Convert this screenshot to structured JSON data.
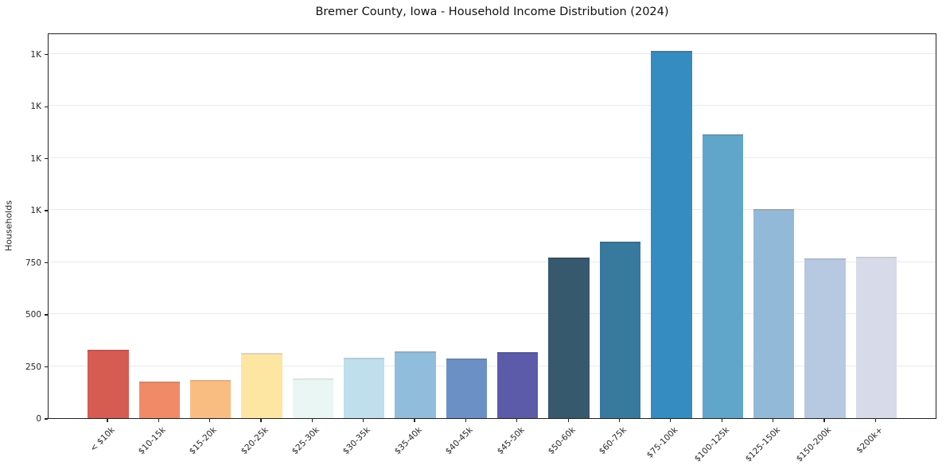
{
  "title": "Bremer County, Iowa - Household Income Distribution (2024)",
  "chart_data": {
    "type": "bar",
    "title": "Bremer County, Iowa - Household Income Distribution (2024)",
    "xlabel": "",
    "ylabel": "Households",
    "ylim": [
      0,
      1852
    ],
    "grid": "horizontal",
    "legend": "none",
    "categories": [
      "< $10k",
      "$10-15k",
      "$15-20k",
      "$20-25k",
      "$25-30k",
      "$30-35k",
      "$35-40k",
      "$40-45k",
      "$45-50k",
      "$50-60k",
      "$60-75k",
      "$75-100k",
      "$100-125k",
      "$125-150k",
      "$150-200k",
      "$200k+"
    ],
    "values": [
      327,
      175,
      184,
      315,
      190,
      291,
      322,
      287,
      318,
      772,
      848,
      1764,
      1363,
      1003,
      769,
      776
    ],
    "bar_colors": [
      "#d65b50",
      "#f18a67",
      "#fabd81",
      "#fde5a2",
      "#e9f6f3",
      "#bedfeb",
      "#91bddc",
      "#6b90c5",
      "#5c5baa",
      "#36596d",
      "#38799e",
      "#348cc0",
      "#60a5ca",
      "#93b9d9",
      "#b7c9e1",
      "#d7dae8"
    ],
    "yticks": [
      {
        "value": 0,
        "label": "0"
      },
      {
        "value": 250,
        "label": "250"
      },
      {
        "value": 500,
        "label": "500"
      },
      {
        "value": 750,
        "label": "750"
      },
      {
        "value": 1000,
        "label": "1K"
      },
      {
        "value": 1250,
        "label": "1K"
      },
      {
        "value": 1500,
        "label": "1K"
      },
      {
        "value": 1750,
        "label": "1K"
      }
    ]
  }
}
